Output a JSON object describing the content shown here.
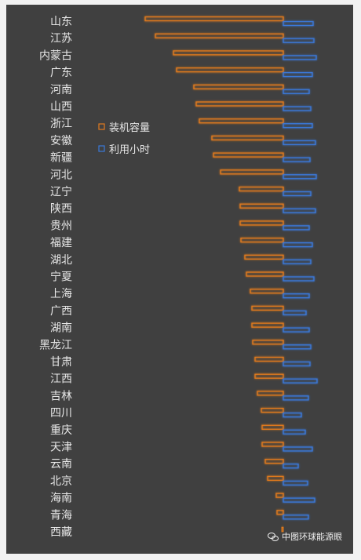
{
  "chart_data": {
    "type": "bar",
    "orientation": "horizontal-diverging",
    "categories": [
      "山东",
      "江苏",
      "内蒙古",
      "广东",
      "河南",
      "山西",
      "浙江",
      "安徽",
      "新疆",
      "河北",
      "辽宁",
      "陕西",
      "贵州",
      "福建",
      "湖北",
      "宁夏",
      "上海",
      "广西",
      "湖南",
      "黑龙江",
      "甘肃",
      "江西",
      "吉林",
      "四川",
      "重庆",
      "天津",
      "云南",
      "北京",
      "海南",
      "青海",
      "西藏"
    ],
    "series": [
      {
        "name": "装机容量",
        "direction": "left",
        "color": "#e07a1e",
        "values": [
          176,
          163,
          140,
          136,
          114,
          111,
          107,
          91,
          89,
          80,
          56,
          55,
          55,
          54,
          49,
          47,
          42,
          40,
          40,
          39,
          36,
          36,
          33,
          28,
          27,
          27,
          23,
          20,
          9,
          8,
          2
        ]
      },
      {
        "name": "利用小时",
        "direction": "right",
        "color": "#3a78d8",
        "values": [
          38,
          39,
          42,
          37,
          33,
          35,
          37,
          41,
          34,
          42,
          35,
          41,
          33,
          37,
          35,
          39,
          33,
          29,
          33,
          35,
          34,
          43,
          32,
          23,
          28,
          37,
          19,
          31,
          40,
          32,
          0
        ]
      }
    ],
    "legend": "center-left",
    "grid": false
  },
  "watermark": {
    "icon": "wechat-icon",
    "text": "中图环球能源眼"
  }
}
